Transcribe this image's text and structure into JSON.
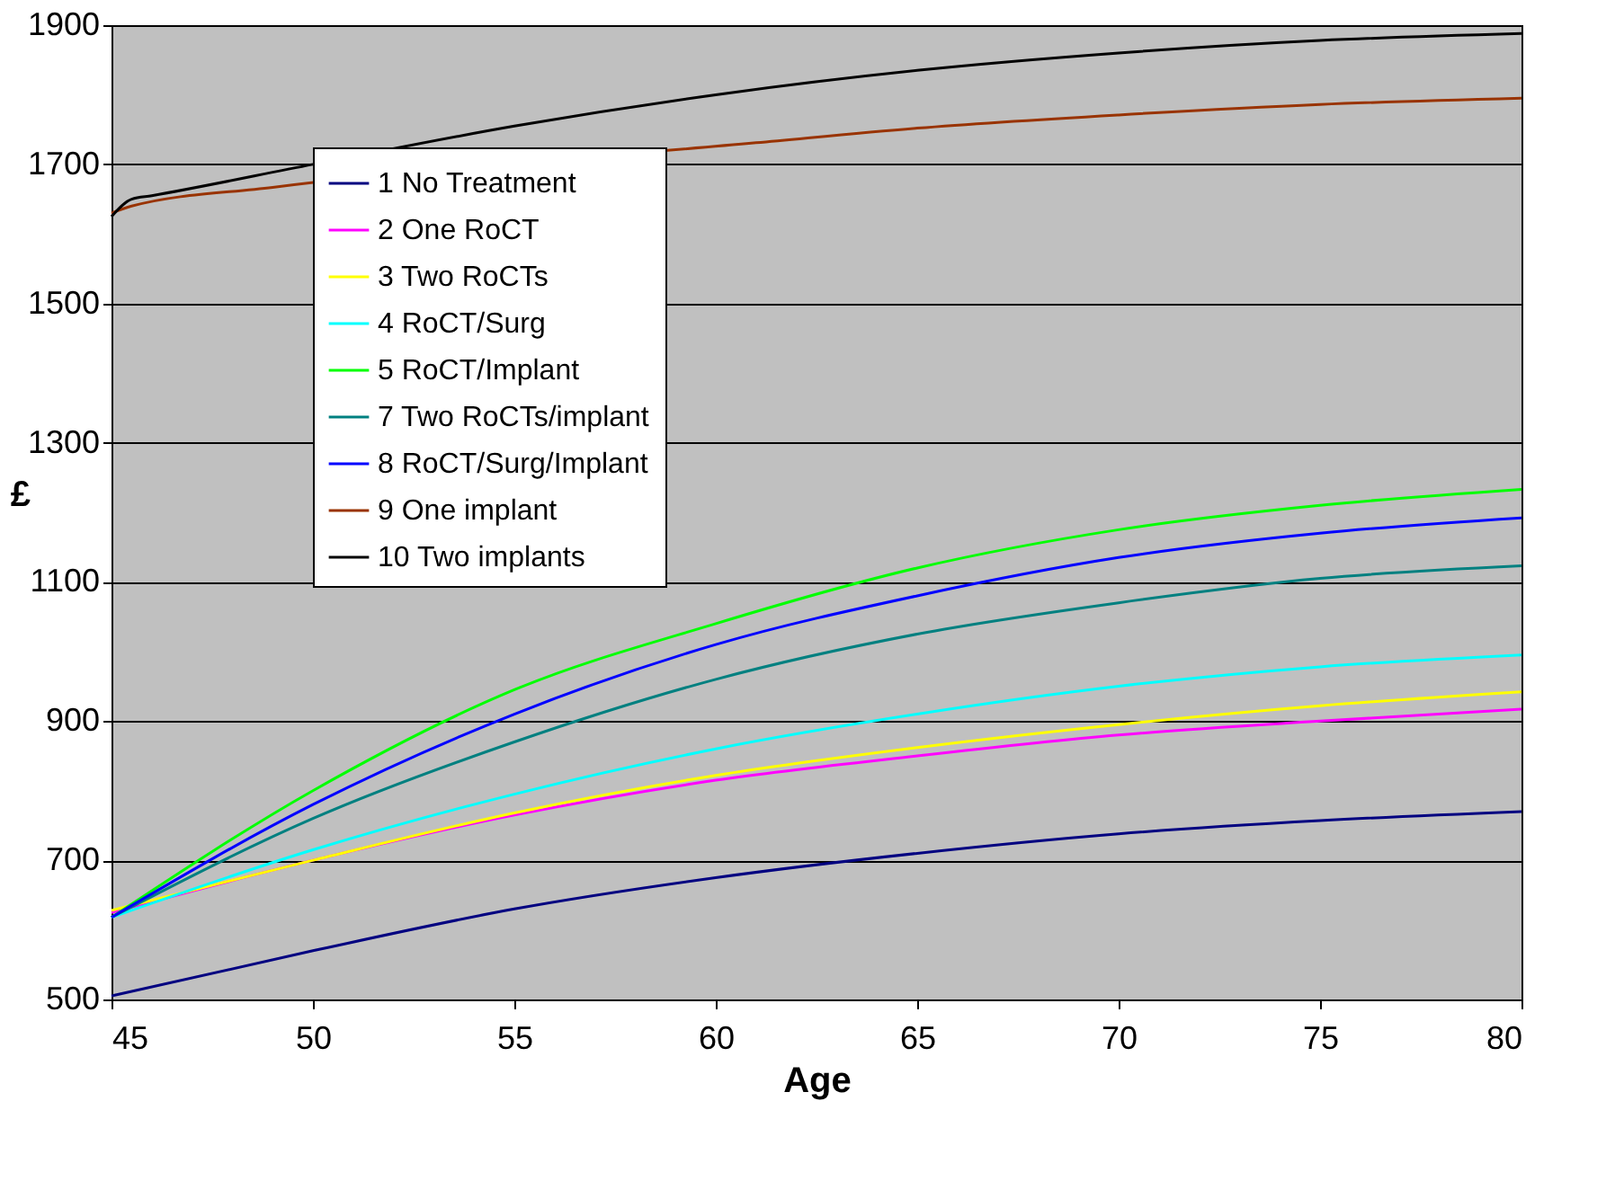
{
  "chart_data": {
    "type": "line",
    "xlabel": "Age",
    "ylabel": "£",
    "xlim": [
      45,
      80
    ],
    "xticks": [
      45,
      50,
      55,
      60,
      65,
      70,
      75,
      80
    ],
    "ylim": [
      500,
      1900
    ],
    "yticks": [
      500,
      700,
      900,
      1100,
      1300,
      1500,
      1700,
      1900
    ],
    "grid": "y",
    "legend": "top left",
    "marker": "none",
    "line_style": "solid",
    "x": [
      45,
      50,
      55,
      60,
      65,
      70,
      75,
      80
    ],
    "series": [
      {
        "name": "1 No Treatment",
        "color": "#000080",
        "values": [
          505,
          570,
          630,
          675,
          710,
          738,
          757,
          770
        ]
      },
      {
        "name": "2 One RoCT",
        "color": "#ff00ff",
        "values": [
          625,
          700,
          765,
          815,
          850,
          880,
          900,
          917
        ]
      },
      {
        "name": "3 Two RoCTs",
        "color": "#ffff00",
        "values": [
          628,
          700,
          768,
          822,
          862,
          895,
          922,
          942
        ]
      },
      {
        "name": "4 RoCT/Surg",
        "color": "#00ffff",
        "values": [
          618,
          715,
          795,
          860,
          910,
          950,
          978,
          995
        ]
      },
      {
        "name": "5 RoCT/Implant",
        "color": "#00ff00",
        "values": [
          618,
          800,
          945,
          1040,
          1120,
          1175,
          1210,
          1233
        ]
      },
      {
        "name": "7 Two RoCTs/implant",
        "color": "#008080",
        "values": [
          618,
          760,
          870,
          960,
          1025,
          1070,
          1105,
          1123
        ]
      },
      {
        "name": "8 RoCT/Surg/Implant",
        "color": "#0000ff",
        "values": [
          618,
          780,
          910,
          1010,
          1080,
          1135,
          1170,
          1192
        ]
      },
      {
        "name": "9 One implant",
        "color": "#993300",
        "x": [
          45,
          45.5,
          49,
          61,
          65,
          70,
          75,
          80
        ],
        "values": [
          1630,
          1640,
          1667,
          1731,
          1752,
          1771,
          1786,
          1795
        ]
      },
      {
        "name": "10 Two implants",
        "color": "#000000",
        "x": [
          45,
          45.5,
          46,
          50,
          55,
          60,
          65,
          70,
          75,
          80
        ],
        "values": [
          1625,
          1650,
          1655,
          1700,
          1755,
          1800,
          1835,
          1860,
          1878,
          1888
        ]
      }
    ]
  }
}
